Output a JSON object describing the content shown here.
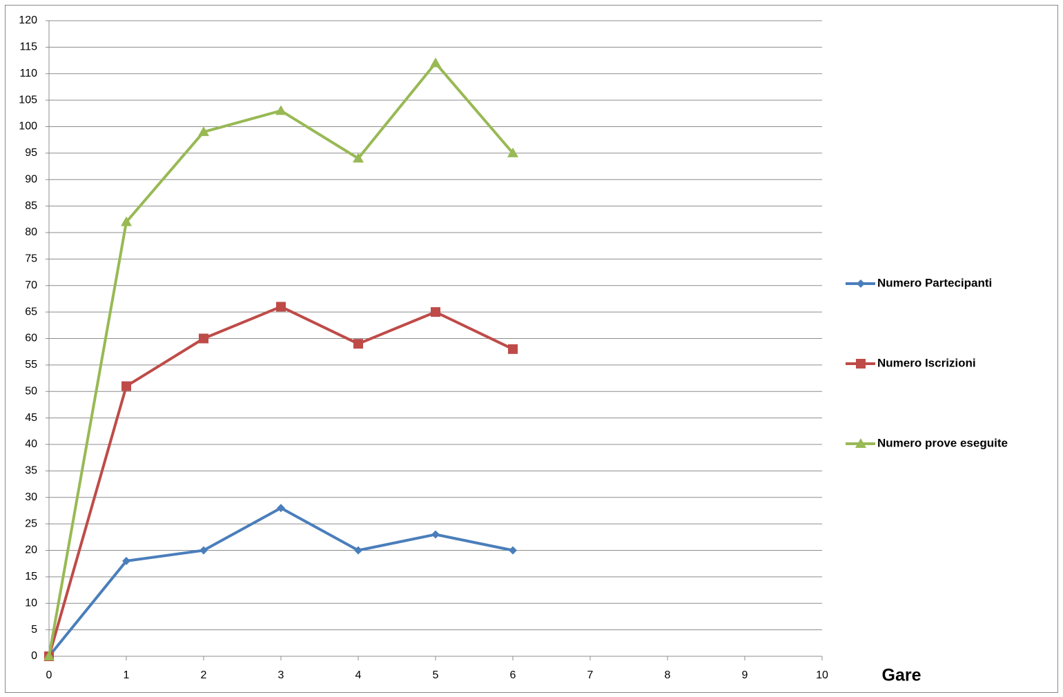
{
  "chart_data": {
    "type": "line",
    "x_label": "Gare",
    "x": [
      0,
      1,
      2,
      3,
      4,
      5,
      6
    ],
    "series": [
      {
        "name": "Numero Partecipanti",
        "color": "#4a7ebb",
        "marker": "diamond",
        "values": [
          0,
          18,
          20,
          28,
          20,
          23,
          20
        ]
      },
      {
        "name": "Numero Iscrizioni",
        "color": "#be4b48",
        "marker": "square",
        "values": [
          0,
          51,
          60,
          66,
          59,
          65,
          58
        ]
      },
      {
        "name": "Numero prove eseguite",
        "color": "#98b954",
        "marker": "triangle",
        "values": [
          0,
          82,
          99,
          103,
          94,
          112,
          95
        ]
      }
    ],
    "xlim": [
      0,
      10
    ],
    "xticks": [
      0,
      1,
      2,
      3,
      4,
      5,
      6,
      7,
      8,
      9,
      10
    ],
    "ylim": [
      0,
      120
    ],
    "yticks": [
      0,
      5,
      10,
      15,
      20,
      25,
      30,
      35,
      40,
      45,
      50,
      55,
      60,
      65,
      70,
      75,
      80,
      85,
      90,
      95,
      100,
      105,
      110,
      115,
      120
    ],
    "grid": true,
    "legend": "right"
  }
}
